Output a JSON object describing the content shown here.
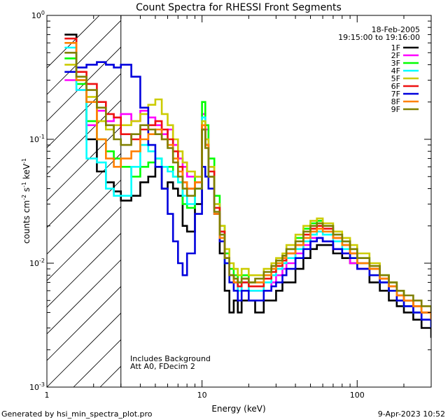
{
  "chart_data": {
    "type": "line",
    "title": "Count Spectra for RHESSI Front Segments",
    "xlabel": "Energy (keV)",
    "ylabel_main": "counts cm",
    "ylabel_exp1": "-2",
    "ylabel_mid": " s",
    "ylabel_exp2": "-1",
    "ylabel_unit": " keV",
    "ylabel_exp3": "-1",
    "xscale": "log",
    "yscale": "log",
    "xlim": [
      1,
      300
    ],
    "ylim": [
      0.001,
      1
    ],
    "x_ticks": [
      {
        "value": 1,
        "label": "1"
      },
      {
        "value": 10,
        "label": "10"
      },
      {
        "value": 100,
        "label": "100"
      }
    ],
    "y_ticks": [
      {
        "value": 1,
        "base": "10",
        "exp": "0"
      },
      {
        "value": 0.1,
        "base": "10",
        "exp": "-1"
      },
      {
        "value": 0.01,
        "base": "10",
        "exp": "-2"
      },
      {
        "value": 0.001,
        "base": "10",
        "exp": "-3"
      }
    ],
    "date": "18-Feb-2005",
    "time_range": "19:15:00 to 19:16:00",
    "annotation_lines": [
      "Includes Background",
      "Att A0, FDecim 2"
    ],
    "shaded_region": {
      "x_from": 1,
      "x_to": 3
    },
    "footer_left": "Generated by hsi_min_spectra_plot.pro",
    "footer_right": "9-Apr-2023 10:52",
    "series": [
      {
        "name": "1F",
        "color": "#000000",
        "x": [
          1.3,
          1.55,
          1.8,
          2.1,
          2.4,
          2.7,
          3,
          3.5,
          4,
          4.5,
          5,
          5.5,
          6,
          6.5,
          7,
          7.5,
          8,
          9,
          10,
          10.5,
          11,
          12,
          13,
          14,
          15,
          16,
          17,
          18,
          20,
          22,
          25,
          28,
          30,
          33,
          35,
          40,
          45,
          50,
          55,
          60,
          70,
          80,
          90,
          100,
          120,
          140,
          160,
          180,
          200,
          230,
          260,
          300
        ],
        "values": [
          0.7,
          0.3,
          0.1,
          0.055,
          0.045,
          0.038,
          0.032,
          0.035,
          0.045,
          0.05,
          0.06,
          0.04,
          0.045,
          0.04,
          0.035,
          0.02,
          0.018,
          0.03,
          0.12,
          0.09,
          0.05,
          0.025,
          0.012,
          0.006,
          0.004,
          0.005,
          0.004,
          0.005,
          0.005,
          0.004,
          0.005,
          0.005,
          0.006,
          0.007,
          0.007,
          0.009,
          0.011,
          0.013,
          0.014,
          0.014,
          0.012,
          0.011,
          0.01,
          0.009,
          0.007,
          0.006,
          0.005,
          0.0045,
          0.004,
          0.0035,
          0.003,
          0.0025
        ]
      },
      {
        "name": "2F",
        "color": "#ff00ff",
        "x": [
          1.3,
          1.55,
          1.8,
          2.1,
          2.4,
          2.7,
          3,
          3.5,
          4,
          4.5,
          5,
          5.5,
          6,
          6.5,
          7,
          7.5,
          8,
          9,
          10,
          10.5,
          11,
          12,
          13,
          14,
          15,
          16,
          17,
          18,
          20,
          22,
          25,
          28,
          30,
          33,
          35,
          40,
          45,
          50,
          55,
          60,
          70,
          80,
          90,
          100,
          120,
          140,
          160,
          180,
          200,
          230,
          260,
          300
        ],
        "values": [
          0.3,
          0.25,
          0.13,
          0.17,
          0.14,
          0.15,
          0.16,
          0.14,
          0.17,
          0.15,
          0.13,
          0.11,
          0.12,
          0.09,
          0.07,
          0.06,
          0.05,
          0.05,
          0.16,
          0.12,
          0.06,
          0.03,
          0.018,
          0.012,
          0.008,
          0.007,
          0.006,
          0.007,
          0.006,
          0.006,
          0.006,
          0.007,
          0.008,
          0.009,
          0.01,
          0.012,
          0.014,
          0.016,
          0.016,
          0.015,
          0.013,
          0.012,
          0.01,
          0.009,
          0.008,
          0.007,
          0.006,
          0.005,
          0.0045,
          0.004,
          0.0035,
          0.003
        ]
      },
      {
        "name": "3F",
        "color": "#00ff00",
        "x": [
          1.3,
          1.55,
          1.8,
          2.1,
          2.4,
          2.7,
          3,
          3.5,
          4,
          4.5,
          5,
          5.5,
          6,
          6.5,
          7,
          7.5,
          8,
          9,
          10,
          10.5,
          11,
          12,
          13,
          14,
          15,
          16,
          17,
          18,
          20,
          22,
          25,
          28,
          30,
          33,
          35,
          40,
          45,
          50,
          55,
          60,
          70,
          80,
          90,
          100,
          120,
          140,
          160,
          180,
          200,
          230,
          260,
          300
        ],
        "values": [
          0.45,
          0.28,
          0.14,
          0.1,
          0.08,
          0.07,
          0.06,
          0.05,
          0.06,
          0.065,
          0.07,
          0.06,
          0.06,
          0.05,
          0.045,
          0.03,
          0.028,
          0.05,
          0.2,
          0.13,
          0.07,
          0.035,
          0.02,
          0.012,
          0.009,
          0.008,
          0.007,
          0.008,
          0.007,
          0.007,
          0.008,
          0.009,
          0.01,
          0.011,
          0.013,
          0.016,
          0.019,
          0.021,
          0.022,
          0.02,
          0.017,
          0.015,
          0.013,
          0.011,
          0.009,
          0.008,
          0.007,
          0.006,
          0.005,
          0.0045,
          0.004,
          0.0035
        ]
      },
      {
        "name": "4F",
        "color": "#00ffff",
        "x": [
          1.3,
          1.55,
          1.8,
          2.1,
          2.4,
          2.7,
          3,
          3.5,
          4,
          4.5,
          5,
          5.5,
          6,
          6.5,
          7,
          7.5,
          8,
          9,
          10,
          10.5,
          11,
          12,
          13,
          14,
          15,
          16,
          17,
          18,
          20,
          22,
          25,
          28,
          30,
          33,
          35,
          40,
          45,
          50,
          55,
          60,
          70,
          80,
          90,
          100,
          120,
          140,
          160,
          180,
          200,
          230,
          260,
          300
        ],
        "values": [
          0.55,
          0.25,
          0.07,
          0.065,
          0.04,
          0.035,
          0.035,
          0.06,
          0.09,
          0.08,
          0.07,
          0.06,
          0.055,
          0.05,
          0.045,
          0.035,
          0.03,
          0.04,
          0.15,
          0.1,
          0.06,
          0.03,
          0.018,
          0.01,
          0.008,
          0.007,
          0.006,
          0.007,
          0.006,
          0.006,
          0.007,
          0.008,
          0.009,
          0.01,
          0.011,
          0.013,
          0.015,
          0.017,
          0.018,
          0.017,
          0.015,
          0.013,
          0.011,
          0.01,
          0.008,
          0.007,
          0.006,
          0.005,
          0.0045,
          0.004,
          0.0035,
          0.003
        ]
      },
      {
        "name": "5F",
        "color": "#cccc00",
        "x": [
          1.3,
          1.55,
          1.8,
          2.1,
          2.4,
          2.7,
          3,
          3.5,
          4,
          4.5,
          5,
          5.5,
          6,
          6.5,
          7,
          7.5,
          8,
          9,
          10,
          10.5,
          11,
          12,
          13,
          14,
          15,
          16,
          17,
          18,
          20,
          22,
          25,
          28,
          30,
          33,
          35,
          40,
          45,
          50,
          55,
          60,
          70,
          80,
          90,
          100,
          120,
          140,
          160,
          180,
          200,
          230,
          260,
          300
        ],
        "values": [
          0.4,
          0.3,
          0.22,
          0.14,
          0.12,
          0.13,
          0.13,
          0.14,
          0.16,
          0.19,
          0.21,
          0.16,
          0.13,
          0.1,
          0.08,
          0.065,
          0.055,
          0.05,
          0.14,
          0.1,
          0.06,
          0.03,
          0.02,
          0.013,
          0.01,
          0.009,
          0.008,
          0.009,
          0.008,
          0.008,
          0.009,
          0.01,
          0.011,
          0.012,
          0.014,
          0.017,
          0.02,
          0.022,
          0.023,
          0.021,
          0.018,
          0.016,
          0.014,
          0.012,
          0.01,
          0.008,
          0.007,
          0.006,
          0.005,
          0.0045,
          0.004,
          0.0035
        ]
      },
      {
        "name": "6F",
        "color": "#ee1111",
        "x": [
          1.3,
          1.55,
          1.8,
          2.1,
          2.4,
          2.7,
          3,
          3.5,
          4,
          4.5,
          5,
          5.5,
          6,
          6.5,
          7,
          7.5,
          8,
          9,
          10,
          10.5,
          11,
          12,
          13,
          14,
          15,
          16,
          17,
          18,
          20,
          22,
          25,
          28,
          30,
          33,
          35,
          40,
          45,
          50,
          55,
          60,
          70,
          80,
          90,
          100,
          120,
          140,
          160,
          180,
          200,
          230,
          260,
          300
        ],
        "values": [
          0.65,
          0.35,
          0.28,
          0.2,
          0.16,
          0.15,
          0.11,
          0.1,
          0.12,
          0.13,
          0.14,
          0.12,
          0.1,
          0.08,
          0.06,
          0.045,
          0.04,
          0.045,
          0.13,
          0.09,
          0.055,
          0.028,
          0.018,
          0.011,
          0.008,
          0.007,
          0.0065,
          0.007,
          0.0065,
          0.0065,
          0.0075,
          0.0085,
          0.0095,
          0.0105,
          0.012,
          0.014,
          0.017,
          0.019,
          0.02,
          0.019,
          0.016,
          0.014,
          0.012,
          0.01,
          0.009,
          0.0075,
          0.0065,
          0.0055,
          0.005,
          0.0045,
          0.004,
          0.0035
        ]
      },
      {
        "name": "7F",
        "color": "#0000dd",
        "x": [
          1.3,
          1.55,
          1.8,
          2.1,
          2.4,
          2.7,
          3,
          3.5,
          4,
          4.5,
          5,
          5.5,
          6,
          6.5,
          7,
          7.5,
          8,
          9,
          10,
          10.5,
          11,
          12,
          13,
          14,
          15,
          16,
          17,
          18,
          20,
          22,
          25,
          28,
          30,
          33,
          35,
          40,
          45,
          50,
          55,
          60,
          70,
          80,
          90,
          100,
          120,
          140,
          160,
          180,
          200,
          230,
          260,
          300
        ],
        "values": [
          0.35,
          0.38,
          0.4,
          0.42,
          0.4,
          0.38,
          0.4,
          0.32,
          0.18,
          0.09,
          0.06,
          0.04,
          0.025,
          0.015,
          0.01,
          0.008,
          0.012,
          0.025,
          0.06,
          0.05,
          0.04,
          0.025,
          0.015,
          0.01,
          0.007,
          0.006,
          0.005,
          0.006,
          0.005,
          0.005,
          0.006,
          0.0065,
          0.007,
          0.008,
          0.009,
          0.011,
          0.013,
          0.015,
          0.016,
          0.015,
          0.013,
          0.012,
          0.011,
          0.009,
          0.008,
          0.007,
          0.006,
          0.005,
          0.0045,
          0.004,
          0.0035,
          0.003
        ]
      },
      {
        "name": "8F",
        "color": "#ff8000",
        "x": [
          1.3,
          1.55,
          1.8,
          2.1,
          2.4,
          2.7,
          3,
          3.5,
          4,
          4.5,
          5,
          5.5,
          6,
          6.5,
          7,
          7.5,
          8,
          9,
          10,
          10.5,
          11,
          12,
          13,
          14,
          15,
          16,
          17,
          18,
          20,
          22,
          25,
          28,
          30,
          33,
          35,
          40,
          45,
          50,
          55,
          60,
          70,
          80,
          90,
          100,
          120,
          140,
          160,
          180,
          200,
          230,
          260,
          300
        ],
        "values": [
          0.6,
          0.3,
          0.2,
          0.1,
          0.07,
          0.06,
          0.07,
          0.08,
          0.1,
          0.11,
          0.12,
          0.1,
          0.09,
          0.07,
          0.055,
          0.045,
          0.04,
          0.045,
          0.13,
          0.09,
          0.05,
          0.025,
          0.016,
          0.011,
          0.008,
          0.007,
          0.007,
          0.0075,
          0.007,
          0.007,
          0.008,
          0.009,
          0.01,
          0.011,
          0.012,
          0.014,
          0.016,
          0.018,
          0.019,
          0.018,
          0.016,
          0.014,
          0.012,
          0.01,
          0.009,
          0.0075,
          0.0065,
          0.0055,
          0.005,
          0.0045,
          0.004,
          0.0035
        ]
      },
      {
        "name": "9F",
        "color": "#808000",
        "x": [
          1.3,
          1.55,
          1.8,
          2.1,
          2.4,
          2.7,
          3,
          3.5,
          4,
          4.5,
          5,
          5.5,
          6,
          6.5,
          7,
          7.5,
          8,
          9,
          10,
          10.5,
          11,
          12,
          13,
          14,
          15,
          16,
          17,
          18,
          20,
          22,
          25,
          28,
          30,
          33,
          35,
          40,
          45,
          50,
          55,
          60,
          70,
          80,
          90,
          100,
          120,
          140,
          160,
          180,
          200,
          230,
          260,
          300
        ],
        "values": [
          0.5,
          0.32,
          0.25,
          0.18,
          0.13,
          0.1,
          0.09,
          0.11,
          0.13,
          0.12,
          0.11,
          0.1,
          0.085,
          0.065,
          0.05,
          0.04,
          0.035,
          0.04,
          0.12,
          0.085,
          0.05,
          0.026,
          0.017,
          0.011,
          0.008,
          0.0075,
          0.007,
          0.0075,
          0.007,
          0.0075,
          0.0085,
          0.0095,
          0.0105,
          0.0115,
          0.013,
          0.015,
          0.018,
          0.02,
          0.021,
          0.02,
          0.017,
          0.015,
          0.013,
          0.011,
          0.0095,
          0.008,
          0.007,
          0.006,
          0.0055,
          0.005,
          0.0045,
          0.004
        ]
      }
    ]
  }
}
